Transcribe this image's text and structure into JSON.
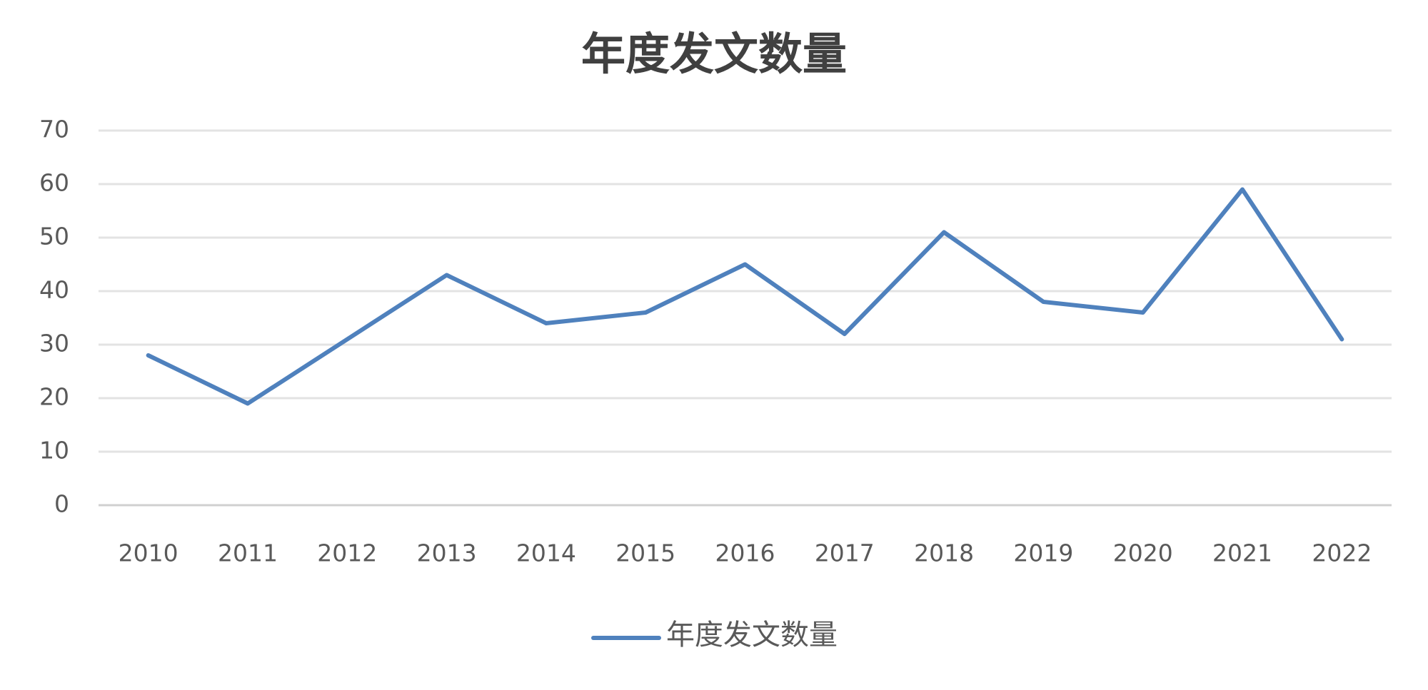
{
  "chart_data": {
    "type": "line",
    "title": "年度发文数量",
    "categories": [
      "2010",
      "2011",
      "2012",
      "2013",
      "2014",
      "2015",
      "2016",
      "2017",
      "2018",
      "2019",
      "2020",
      "2021",
      "2022"
    ],
    "series": [
      {
        "name": "年度发文数量",
        "color": "#4f81bd",
        "values": [
          28,
          19,
          31,
          43,
          34,
          36,
          45,
          32,
          51,
          38,
          36,
          59,
          31
        ]
      }
    ],
    "ylim": [
      0,
      70
    ],
    "yticks": [
      0,
      10,
      20,
      30,
      40,
      50,
      60,
      70
    ],
    "grid": true,
    "legend": "bottom"
  }
}
